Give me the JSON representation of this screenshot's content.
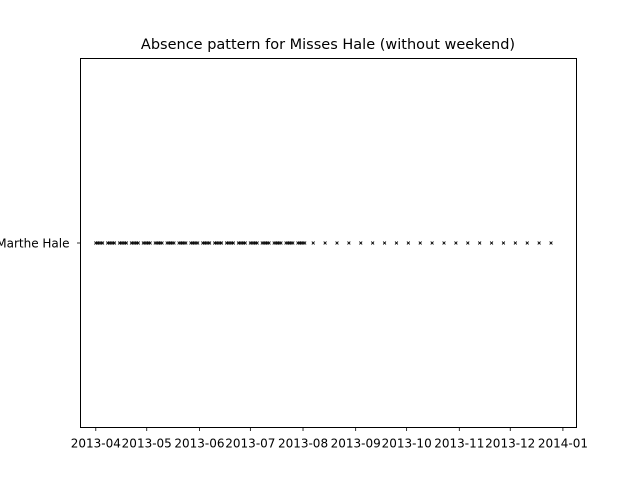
{
  "chart_data": {
    "type": "scatter",
    "title": "Absence pattern for Misses Hale (without weekend)",
    "xlabel": "",
    "ylabel": "",
    "grid": false,
    "x_axis": "date",
    "xlim": [
      "2013-03-23",
      "2014-01-09"
    ],
    "x_ticks": [
      "2013-04",
      "2013-05",
      "2013-06",
      "2013-07",
      "2013-08",
      "2013-09",
      "2013-10",
      "2013-11",
      "2013-12",
      "2014-01"
    ],
    "y_categories": [
      "Marthe Hale"
    ],
    "marker": "x",
    "marker_color": "#000000",
    "series": [
      {
        "name": "Marthe Hale",
        "dates": [
          "2013-04-01",
          "2013-04-02",
          "2013-04-03",
          "2013-04-04",
          "2013-04-05",
          "2013-04-08",
          "2013-04-09",
          "2013-04-10",
          "2013-04-11",
          "2013-04-12",
          "2013-04-15",
          "2013-04-16",
          "2013-04-17",
          "2013-04-18",
          "2013-04-19",
          "2013-04-22",
          "2013-04-23",
          "2013-04-24",
          "2013-04-25",
          "2013-04-26",
          "2013-04-29",
          "2013-04-30",
          "2013-05-01",
          "2013-05-02",
          "2013-05-03",
          "2013-05-06",
          "2013-05-07",
          "2013-05-08",
          "2013-05-09",
          "2013-05-10",
          "2013-05-13",
          "2013-05-14",
          "2013-05-15",
          "2013-05-16",
          "2013-05-17",
          "2013-05-20",
          "2013-05-21",
          "2013-05-22",
          "2013-05-23",
          "2013-05-24",
          "2013-05-27",
          "2013-05-28",
          "2013-05-29",
          "2013-05-30",
          "2013-05-31",
          "2013-06-03",
          "2013-06-04",
          "2013-06-05",
          "2013-06-06",
          "2013-06-07",
          "2013-06-10",
          "2013-06-11",
          "2013-06-12",
          "2013-06-13",
          "2013-06-14",
          "2013-06-17",
          "2013-06-18",
          "2013-06-19",
          "2013-06-20",
          "2013-06-21",
          "2013-06-24",
          "2013-06-25",
          "2013-06-26",
          "2013-06-27",
          "2013-06-28",
          "2013-07-01",
          "2013-07-02",
          "2013-07-03",
          "2013-07-04",
          "2013-07-05",
          "2013-07-08",
          "2013-07-09",
          "2013-07-10",
          "2013-07-11",
          "2013-07-12",
          "2013-07-15",
          "2013-07-16",
          "2013-07-17",
          "2013-07-18",
          "2013-07-19",
          "2013-07-22",
          "2013-07-23",
          "2013-07-24",
          "2013-07-25",
          "2013-07-26",
          "2013-07-29",
          "2013-07-30",
          "2013-07-31",
          "2013-08-01",
          "2013-08-02",
          "2013-08-07",
          "2013-08-14",
          "2013-08-21",
          "2013-08-28",
          "2013-09-04",
          "2013-09-11",
          "2013-09-18",
          "2013-09-25",
          "2013-10-02",
          "2013-10-09",
          "2013-10-16",
          "2013-10-23",
          "2013-10-30",
          "2013-11-06",
          "2013-11-13",
          "2013-11-20",
          "2013-11-27",
          "2013-12-04",
          "2013-12-11",
          "2013-12-18",
          "2013-12-25"
        ]
      }
    ]
  }
}
